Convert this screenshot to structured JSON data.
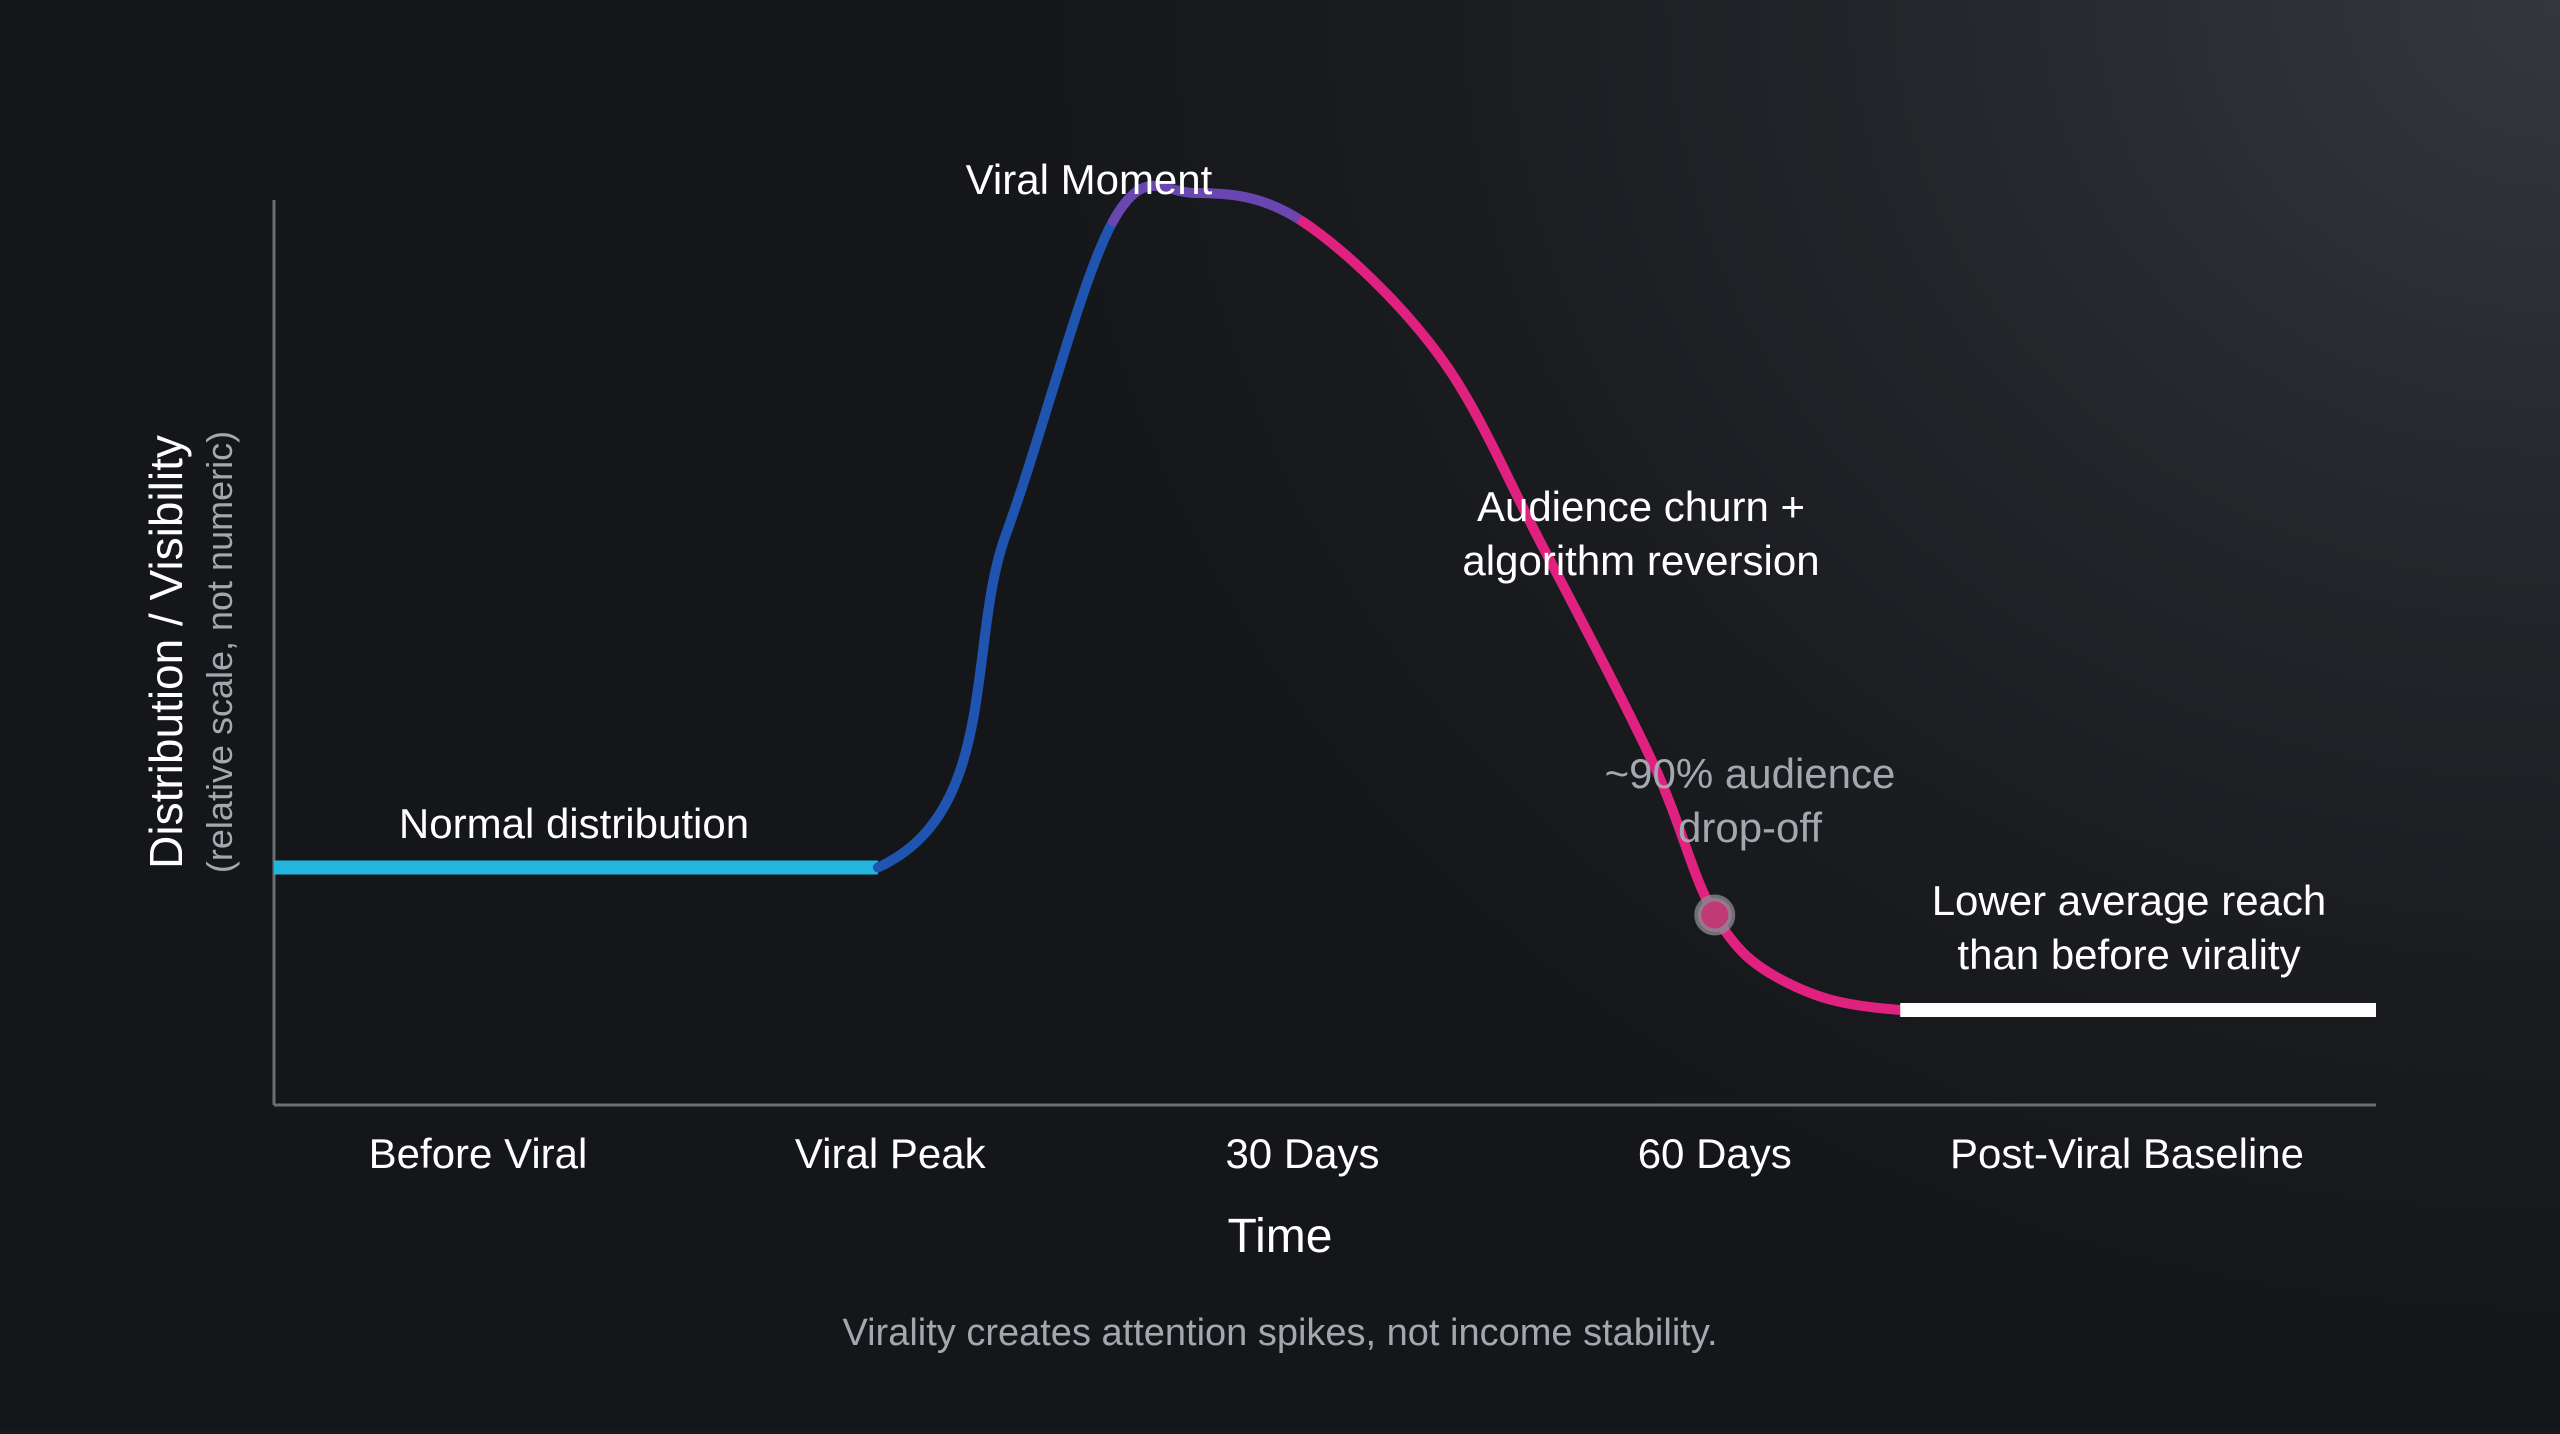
{
  "chart_data": {
    "type": "line",
    "ylabel": "Distribution / Visibility",
    "ylabel_note": "(relative scale, not numeric)",
    "xlabel": "Time",
    "categories": [
      "Before Viral",
      "Viral Peak",
      "30 Days",
      "60 Days",
      "Post-Viral Baseline"
    ],
    "ylim": [
      0,
      100
    ],
    "grid": false,
    "series": [
      {
        "x": [
          0,
          0.97,
          1.28,
          1.54,
          1.74,
          2.0,
          2.33,
          2.58,
          2.85,
          3.0,
          3.17,
          3.45,
          4.05,
          4.61
        ],
        "values": [
          25,
          25,
          60,
          93,
          96,
          93,
          79,
          59,
          36,
          20,
          13,
          10,
          10,
          10
        ]
      }
    ],
    "segment_colors": {
      "baseline": "#22b5e0",
      "rise": "#1f55b0",
      "peak": "#6a46b0",
      "decline": "#e0217f",
      "post": "#ffffff"
    },
    "annotations": {
      "normal": "Normal distribution",
      "viral_moment": "Viral Moment",
      "churn_line1": "Audience churn +",
      "churn_line2": "algorithm reversion",
      "dropoff_line1": "~90% audience",
      "dropoff_line2": "drop-off",
      "lower_line1": "Lower average reach",
      "lower_line2": "than before virality"
    },
    "caption": "Virality creates attention spikes, not income stability.",
    "colors": {
      "axis": "#6b6e75",
      "text": "#ffffff",
      "muted_text": "#a4a7ad",
      "marker_fill": "#c03a78",
      "marker_ring": "#8a8d93"
    }
  }
}
